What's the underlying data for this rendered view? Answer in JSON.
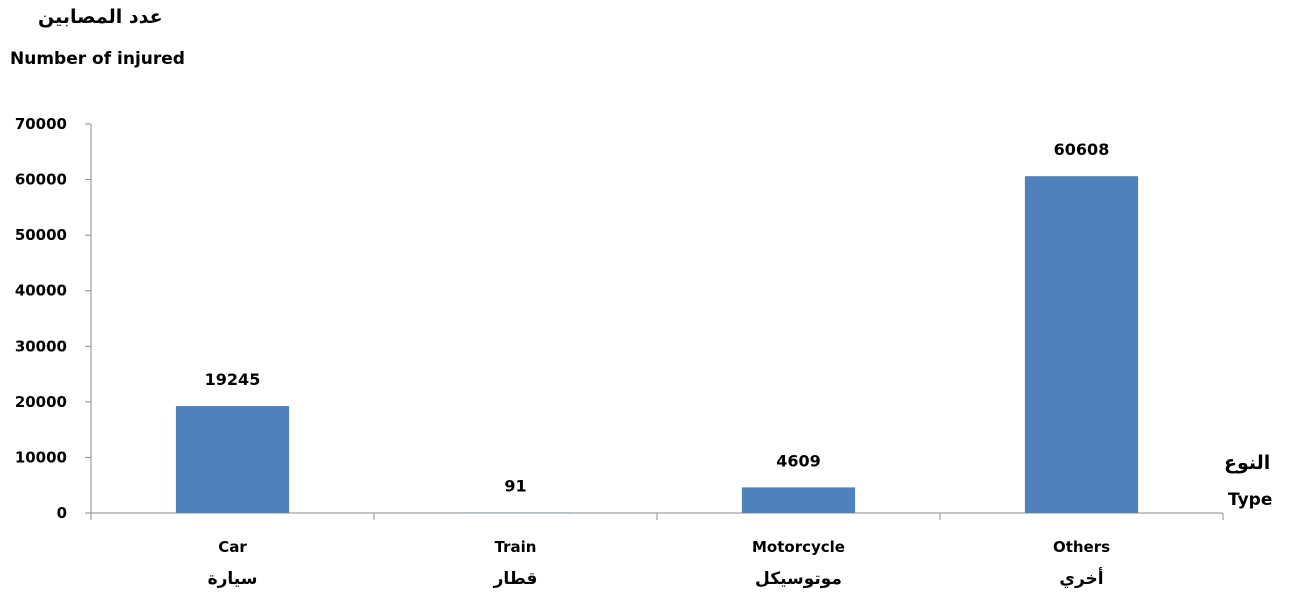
{
  "chart_data": {
    "type": "bar",
    "ylabel_ar": "عدد المصابين",
    "ylabel_en": "Number of injured",
    "xlabel_ar": "النوع",
    "xlabel_en": "Type",
    "categories": [
      {
        "en": "Car",
        "ar": "سيارة"
      },
      {
        "en": "Train",
        "ar": "قطار"
      },
      {
        "en": "Motorcycle",
        "ar": "موتوسيكل"
      },
      {
        "en": "Others",
        "ar": "أخري"
      }
    ],
    "values": [
      19245,
      91,
      4609,
      60608
    ],
    "yticks": [
      0,
      10000,
      20000,
      30000,
      40000,
      50000,
      60000,
      70000
    ],
    "ylim": [
      0,
      70000
    ],
    "bar_color": "#4F81BD",
    "grid": false,
    "data_labels": true
  }
}
